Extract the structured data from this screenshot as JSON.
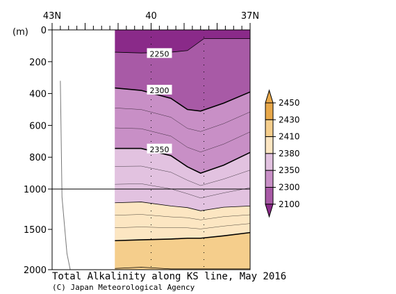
{
  "chart_data": {
    "type": "heatmap",
    "title": "Total Alkalinity along KS line, May 2016",
    "credit": "(C) Japan Meteorological Agency",
    "x_axis": {
      "tick_labels": [
        "43N",
        "40",
        "37N"
      ],
      "tick_values": [
        43,
        40,
        37
      ],
      "range": [
        43,
        37
      ]
    },
    "y_axis": {
      "unit_label": "(m)",
      "tick_labels": [
        "0",
        "200",
        "400",
        "600",
        "800",
        "1000",
        "1500",
        "2000"
      ],
      "tick_values": [
        0,
        200,
        400,
        600,
        800,
        1000,
        1500,
        2000
      ],
      "range": [
        0,
        2000
      ],
      "note": "vertical scale changes at 1000 m"
    },
    "contour_labels": [
      {
        "text": "2250",
        "lat": 40.0,
        "depth": 150
      },
      {
        "text": "2300",
        "lat": 40.0,
        "depth": 380
      },
      {
        "text": "2350",
        "lat": 40.0,
        "depth": 750
      }
    ],
    "contour_levels": [
      {
        "value": 2250,
        "depths": [
          [
            41.1,
            140
          ],
          [
            40.3,
            145
          ],
          [
            39.4,
            140
          ],
          [
            38.9,
            130
          ],
          [
            38.4,
            55
          ]
        ]
      },
      {
        "value": 2300,
        "depths": [
          [
            41.1,
            365
          ],
          [
            40.3,
            380
          ],
          [
            39.4,
            430
          ],
          [
            38.9,
            500
          ],
          [
            38.5,
            510
          ],
          [
            37.8,
            460
          ],
          [
            37.0,
            390
          ]
        ]
      },
      {
        "value": 2350,
        "depths": [
          [
            41.1,
            745
          ],
          [
            40.3,
            745
          ],
          [
            39.4,
            790
          ],
          [
            38.9,
            860
          ],
          [
            38.5,
            900
          ],
          [
            37.8,
            850
          ],
          [
            37.0,
            770
          ]
        ]
      },
      {
        "value": 2380,
        "depths": [
          [
            41.1,
            1170
          ],
          [
            40.3,
            1160
          ],
          [
            39.4,
            1210
          ],
          [
            38.9,
            1230
          ],
          [
            38.5,
            1270
          ],
          [
            37.8,
            1225
          ],
          [
            37.0,
            1210
          ]
        ]
      },
      {
        "value": 2410,
        "depths": [
          [
            41.1,
            1640
          ],
          [
            40.3,
            1630
          ],
          [
            39.4,
            1620
          ],
          [
            38.9,
            1610
          ],
          [
            38.5,
            1610
          ],
          [
            37.8,
            1580
          ],
          [
            37.0,
            1540
          ]
        ]
      },
      {
        "value": 2430,
        "depths": [
          [
            41.1,
            1985
          ],
          [
            40.3,
            1970
          ],
          [
            39.4,
            1990
          ]
        ]
      }
    ],
    "legend": {
      "levels": [
        "2450",
        "2430",
        "2410",
        "2380",
        "2350",
        "2300",
        "2100"
      ],
      "colors": [
        "#E8A84A",
        "#F5CE8C",
        "#FCE6C2",
        "#E2C2E0",
        "#C88FC6",
        "#A85AA6",
        "#7E1E7D"
      ],
      "top_arrow_color": "#E8A84A",
      "bottom_arrow_color": "#8A2A89"
    },
    "band_colors": [
      "#8A2A89",
      "#A85AA6",
      "#C88FC6",
      "#E2C2E0",
      "#FCE6C2",
      "#F5CE8C"
    ],
    "no_data_region": {
      "from_lat": 43.0,
      "to_lat": 41.1
    }
  }
}
